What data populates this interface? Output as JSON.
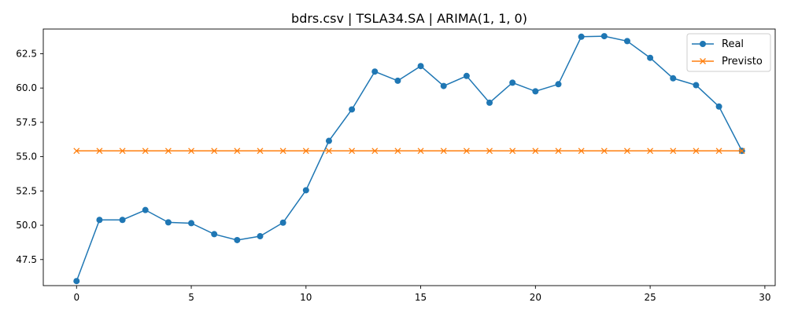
{
  "chart_data": {
    "type": "line",
    "title": "bdrs.csv | TSLA34.SA | ARIMA(1, 1, 0)",
    "xlabel": "",
    "ylabel": "",
    "xlim": [
      -1.45,
      30.45
    ],
    "ylim": [
      45.6,
      64.3
    ],
    "x_ticks": [
      0,
      5,
      10,
      15,
      20,
      25,
      30
    ],
    "y_ticks": [
      47.5,
      50.0,
      52.5,
      55.0,
      57.5,
      60.0,
      62.5
    ],
    "grid": false,
    "legend_position": "top-right",
    "x": [
      0,
      1,
      2,
      3,
      4,
      5,
      6,
      7,
      8,
      9,
      10,
      11,
      12,
      13,
      14,
      15,
      16,
      17,
      18,
      19,
      20,
      21,
      22,
      23,
      24,
      25,
      26,
      27,
      28,
      29
    ],
    "series": [
      {
        "name": "Real",
        "marker": "circle",
        "color": "#1f77b4",
        "values": [
          45.93,
          50.39,
          50.39,
          51.11,
          50.21,
          50.15,
          49.35,
          48.92,
          49.2,
          50.19,
          52.55,
          56.15,
          58.44,
          61.2,
          60.53,
          61.6,
          60.15,
          60.88,
          58.93,
          60.39,
          59.76,
          60.28,
          63.74,
          63.78,
          63.42,
          62.2,
          60.71,
          60.21,
          58.65,
          55.42
        ]
      },
      {
        "name": "Previsto",
        "marker": "x",
        "color": "#ff7f0e",
        "values": [
          55.42,
          55.42,
          55.42,
          55.42,
          55.42,
          55.42,
          55.42,
          55.42,
          55.42,
          55.42,
          55.42,
          55.42,
          55.42,
          55.42,
          55.42,
          55.42,
          55.42,
          55.42,
          55.42,
          55.42,
          55.42,
          55.42,
          55.42,
          55.42,
          55.42,
          55.42,
          55.42,
          55.42,
          55.42,
          55.42
        ]
      }
    ]
  }
}
